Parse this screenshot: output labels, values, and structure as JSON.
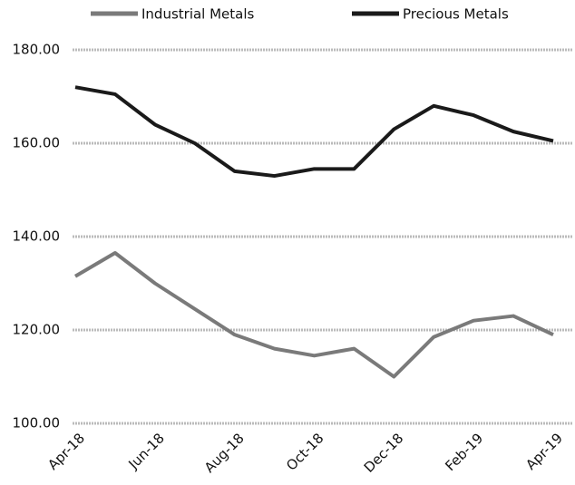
{
  "chart_data": {
    "type": "line",
    "categories": [
      "Apr-18",
      null,
      "Jun-18",
      null,
      "Aug-18",
      null,
      "Oct-18",
      null,
      "Dec-18",
      null,
      "Feb-19",
      null,
      "Apr-19"
    ],
    "series": [
      {
        "name": "Industrial Metals",
        "color": "#7a7a7a",
        "values": [
          131.5,
          136.5,
          130,
          124.5,
          119,
          116,
          114.5,
          116,
          110,
          118.5,
          122,
          123,
          119
        ]
      },
      {
        "name": "Precious Metals",
        "color": "#1a1a1a",
        "values": [
          172,
          170.5,
          164,
          160,
          154,
          153,
          154.5,
          154.5,
          163,
          168,
          166,
          162.5,
          160.5
        ]
      }
    ],
    "ylim": [
      100,
      180
    ],
    "yticks": [
      {
        "value": 100,
        "label": "100.00"
      },
      {
        "value": 120,
        "label": "120.00"
      },
      {
        "value": 140,
        "label": "140.00"
      },
      {
        "value": 160,
        "label": "160.00"
      },
      {
        "value": 180,
        "label": "180.00"
      }
    ],
    "grid": true,
    "legend": "top"
  }
}
